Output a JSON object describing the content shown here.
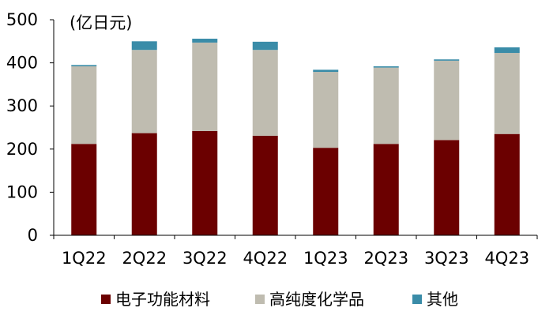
{
  "chart_data": {
    "type": "bar",
    "stacked": true,
    "unit_label": "(亿日元)",
    "categories": [
      "1Q22",
      "2Q22",
      "3Q22",
      "4Q22",
      "1Q23",
      "2Q23",
      "3Q23",
      "4Q23"
    ],
    "series": [
      {
        "name": "电子功能材料",
        "color": "#6b0000",
        "values": [
          212,
          237,
          242,
          231,
          203,
          212,
          221,
          235
        ]
      },
      {
        "name": "高纯度化学品",
        "color": "#bfbcb0",
        "values": [
          180,
          193,
          205,
          199,
          176,
          177,
          184,
          188
        ]
      },
      {
        "name": "其他",
        "color": "#3a8ca8",
        "values": [
          3,
          20,
          9,
          19,
          5,
          3,
          3,
          13
        ]
      }
    ],
    "ylim": [
      0,
      500
    ],
    "yticks": [
      0,
      100,
      200,
      300,
      400,
      500
    ],
    "legend_position": "bottom"
  }
}
